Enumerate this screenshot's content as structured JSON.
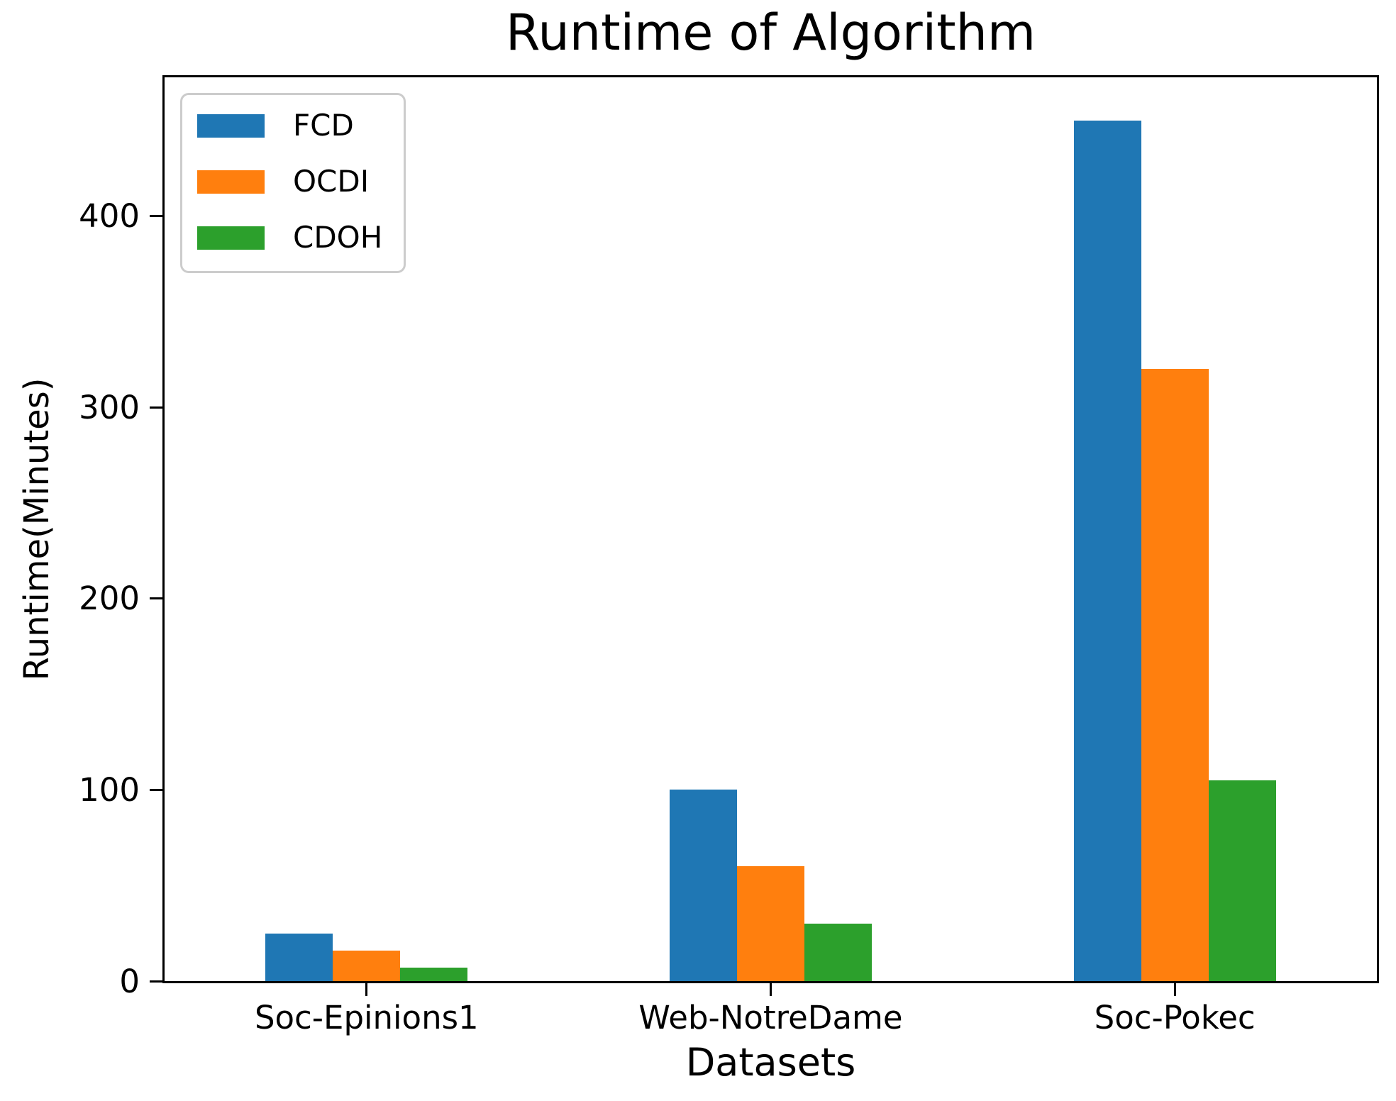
{
  "chart_data": {
    "type": "bar",
    "title": "Runtime of Algorithm",
    "xlabel": "Datasets",
    "ylabel": "Runtime(Minutes)",
    "categories": [
      "Soc-Epinions1",
      "Web-NotreDame",
      "Soc-Pokec"
    ],
    "series": [
      {
        "name": "FCD",
        "color": "#1f77b4",
        "values": [
          25,
          100,
          450
        ]
      },
      {
        "name": "OCDI",
        "color": "#ff7f0e",
        "values": [
          16,
          60,
          320
        ]
      },
      {
        "name": "CDOH",
        "color": "#2ca02c",
        "values": [
          7,
          30,
          105
        ]
      }
    ],
    "ylim": [
      0,
      472.5
    ],
    "yticks": [
      0,
      100,
      200,
      300,
      400
    ],
    "legend_position": "upper left",
    "grid": false,
    "axis_color": "#000000",
    "background_color": "#ffffff"
  }
}
